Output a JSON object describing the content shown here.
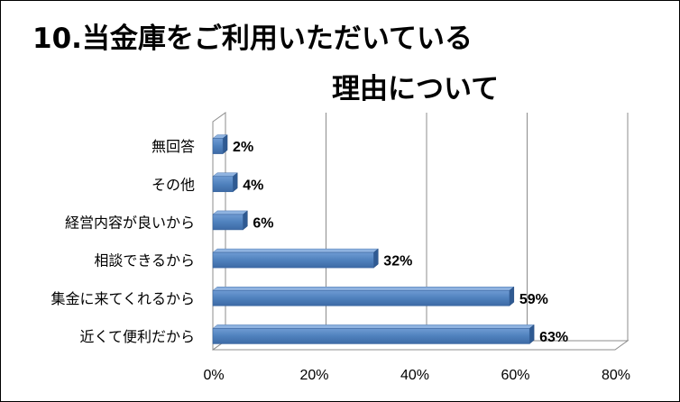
{
  "chart_data": {
    "type": "bar",
    "orientation": "horizontal",
    "title_lines": [
      "10.当金庫をご利用いただいている",
      "理由について"
    ],
    "categories": [
      "無回答",
      "その他",
      "経営内容が良いから",
      "相談できるから",
      "集金に来てくれるから",
      "近くて便利だから"
    ],
    "values": [
      2,
      4,
      6,
      32,
      59,
      63
    ],
    "data_labels": [
      "2%",
      "4%",
      "6%",
      "32%",
      "59%",
      "63%"
    ],
    "xlim": [
      0,
      80
    ],
    "x_ticks": [
      0,
      20,
      40,
      60,
      80
    ],
    "x_tick_labels": [
      "0%",
      "20%",
      "40%",
      "60%",
      "80%"
    ],
    "grid": true,
    "legend": "none",
    "bar_color": "#4F81BD"
  }
}
